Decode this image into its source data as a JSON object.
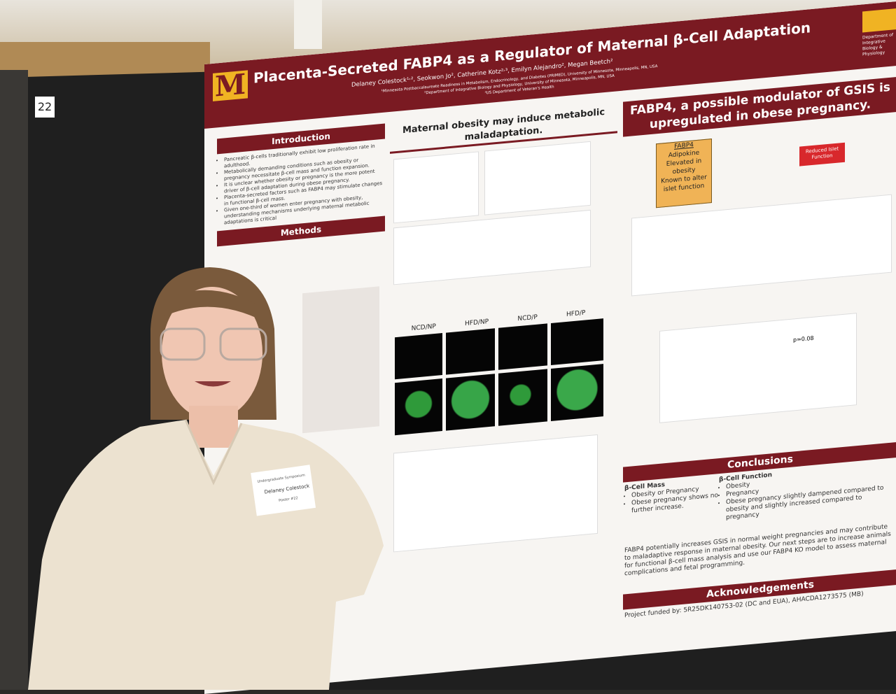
{
  "board": {
    "number": "22"
  },
  "poster": {
    "title": "Placenta-Secreted FABP4 as a Regulator of Maternal β-Cell Adaptation",
    "authors": "Delaney Colestock¹˒², Seokwon Jo², Catherine Kotz²˒³, Emilyn Alejandro², Megan Beetch²",
    "affiliations": [
      "¹Minnesota Postbaccalaureate Readiness in Metabolism, Endocrinology, and Diabetes (PRIMED), University of Minnesota, Minneapolis, MN, USA",
      "²Department of Integrative Biology and Physiology, University of Minnesota, Minneapolis, MN, USA",
      "³US Department of Veteran's Health"
    ],
    "department": "Department of Integrative Biology & Physiology",
    "introduction": {
      "heading": "Introduction",
      "bullets": [
        "Pancreatic β-cells traditionally exhibit low proliferation rate in adulthood.",
        "Metabolically demanding conditions such as obesity or pregnancy necessitate β-cell mass and function expansion.",
        "It is unclear whether obesity or pregnancy is the more potent driver of β-cell adaptation during obese pregnancy.",
        "Placenta-secreted factors such as FABP4 may stimulate changes in functional β-cell mass.",
        "Given one-third of women enter pregnancy with obesity, understanding mechanisms underlying maternal metabolic adaptations is critical"
      ]
    },
    "methods": {
      "heading": "Methods"
    },
    "middle": {
      "heading": "Maternal obesity may induce metabolic maladaptation.",
      "panels": [
        "NCD/NP",
        "HFD/NP",
        "NCD/P",
        "HFD/P"
      ]
    },
    "right": {
      "heading": "FABP4, a possible modulator of GSIS is upregulated in obese pregnancy.",
      "box_title": "FABP4",
      "box_items": [
        "Adipokine",
        "Elevated in obesity",
        "Known to alter islet function"
      ],
      "reduced": "Reduced Islet Function",
      "pvalue": "p=0.08"
    },
    "conclusions": {
      "heading": "Conclusions",
      "mass_heading": "β-Cell Mass",
      "mass_items": [
        "Obesity or Pregnancy",
        "Obese pregnancy shows no further increase."
      ],
      "function_heading": "β-Cell Function",
      "function_items": [
        "Obesity",
        "Pregnancy",
        "Obese pregnancy slightly dampened compared to obesity and slightly increased compared to pregnancy"
      ],
      "summary": "FABP4 potentially increases GSIS in normal weight pregnancies and may contribute to maladaptive response in maternal obesity. Our next steps are to increase animals for functional β-cell mass analysis and use our FABP4 KO model to assess maternal complications and fetal programming."
    },
    "acknowledgements": {
      "heading": "Acknowledgements",
      "text": "Project funded by: 5R25DK140753-02 (DC and EUA), AHACDA1273575 (MB)"
    }
  },
  "badge": {
    "event": "Undergraduate Symposium",
    "name": "Delaney Colestock",
    "role": "Poster #22"
  }
}
